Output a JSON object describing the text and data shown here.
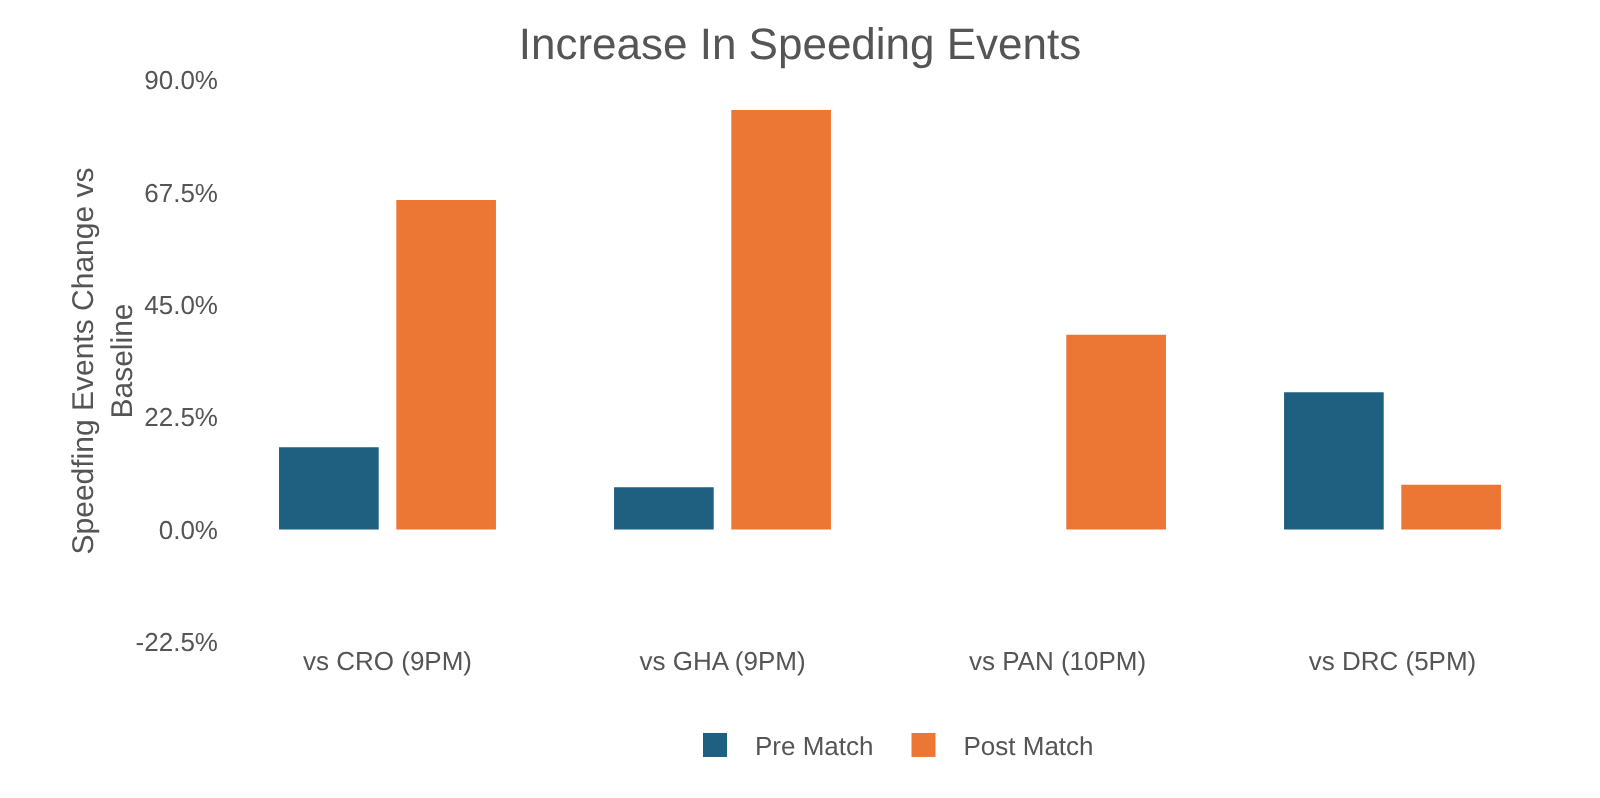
{
  "chart_data": {
    "type": "bar",
    "title": "Increase In Speeding Events",
    "ylabel": "Speedfing Events Change vs Baseline",
    "categories": [
      "vs CRO (9PM)",
      "vs GHA (9PM)",
      "vs PAN (10PM)",
      "vs DRC (5PM)"
    ],
    "series": [
      {
        "name": "Pre Match",
        "color": "#1f5f80",
        "values": [
          16.5,
          8.5,
          null,
          27.5
        ]
      },
      {
        "name": "Post Match",
        "color": "#ec7634",
        "values": [
          66,
          84,
          39,
          9
        ]
      }
    ],
    "ylim": [
      -22.5,
      90
    ],
    "yticks": [
      {
        "value": -22.5,
        "label": "-22.5%"
      },
      {
        "value": 0,
        "label": "0.0%"
      },
      {
        "value": 22.5,
        "label": "22.5%"
      },
      {
        "value": 45,
        "label": "45.0%"
      },
      {
        "value": 67.5,
        "label": "67.5%"
      },
      {
        "value": 90,
        "label": "90.0%"
      }
    ],
    "grid": false,
    "legend": "bottom"
  }
}
